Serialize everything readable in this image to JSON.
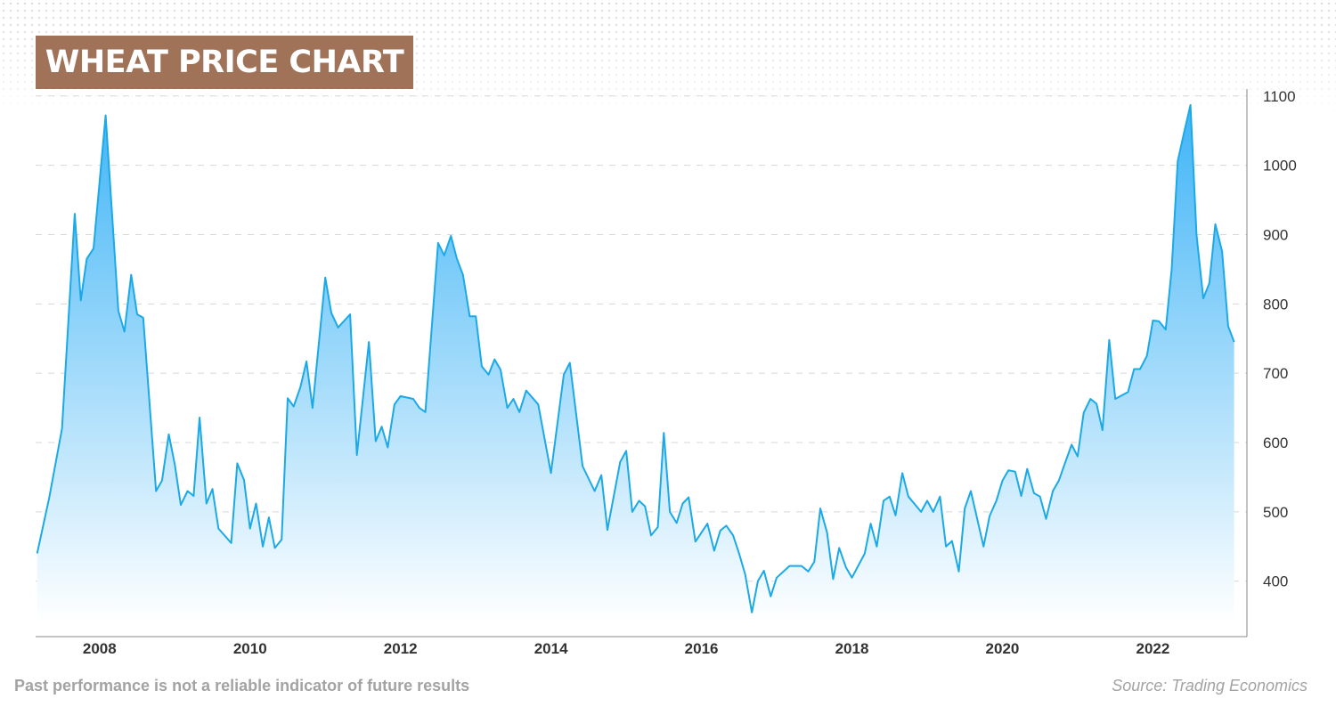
{
  "chart_data": {
    "type": "area",
    "title": "WHEAT PRICE CHART",
    "xlabel": "",
    "ylabel": "",
    "ylim": [
      320,
      1110
    ],
    "xlim": [
      2007.15,
      2023.25
    ],
    "y_ticks": [
      400,
      500,
      600,
      700,
      800,
      900,
      1000,
      1100
    ],
    "x_ticks": [
      2008,
      2010,
      2012,
      2014,
      2016,
      2018,
      2020,
      2022
    ],
    "grid": "horizontal-dashed",
    "colors": {
      "line": "#1ba9e8",
      "fill_top": "#45b8f7",
      "fill_bottom": "#ffffff",
      "grid": "#d7d7d7",
      "axis": "#8a8a8a"
    },
    "series": [
      {
        "name": "Wheat",
        "points": [
          [
            2007.17,
            440
          ],
          [
            2007.33,
            520
          ],
          [
            2007.5,
            620
          ],
          [
            2007.67,
            930
          ],
          [
            2007.75,
            805
          ],
          [
            2007.83,
            865
          ],
          [
            2007.92,
            880
          ],
          [
            2008.08,
            1072
          ],
          [
            2008.25,
            790
          ],
          [
            2008.33,
            760
          ],
          [
            2008.42,
            842
          ],
          [
            2008.5,
            785
          ],
          [
            2008.58,
            780
          ],
          [
            2008.75,
            530
          ],
          [
            2008.83,
            545
          ],
          [
            2008.92,
            612
          ],
          [
            2009.0,
            568
          ],
          [
            2009.08,
            510
          ],
          [
            2009.17,
            530
          ],
          [
            2009.25,
            523
          ],
          [
            2009.33,
            636
          ],
          [
            2009.42,
            512
          ],
          [
            2009.5,
            533
          ],
          [
            2009.58,
            476
          ],
          [
            2009.75,
            455
          ],
          [
            2009.83,
            570
          ],
          [
            2009.92,
            546
          ],
          [
            2010.0,
            476
          ],
          [
            2010.08,
            512
          ],
          [
            2010.17,
            450
          ],
          [
            2010.25,
            492
          ],
          [
            2010.33,
            448
          ],
          [
            2010.42,
            460
          ],
          [
            2010.5,
            664
          ],
          [
            2010.58,
            652
          ],
          [
            2010.67,
            680
          ],
          [
            2010.75,
            717
          ],
          [
            2010.83,
            650
          ],
          [
            2011.0,
            838
          ],
          [
            2011.08,
            787
          ],
          [
            2011.17,
            766
          ],
          [
            2011.33,
            785
          ],
          [
            2011.42,
            582
          ],
          [
            2011.58,
            745
          ],
          [
            2011.67,
            602
          ],
          [
            2011.75,
            623
          ],
          [
            2011.83,
            593
          ],
          [
            2011.92,
            655
          ],
          [
            2012.0,
            667
          ],
          [
            2012.17,
            663
          ],
          [
            2012.25,
            650
          ],
          [
            2012.33,
            644
          ],
          [
            2012.5,
            888
          ],
          [
            2012.58,
            870
          ],
          [
            2012.67,
            898
          ],
          [
            2012.75,
            865
          ],
          [
            2012.83,
            842
          ],
          [
            2012.92,
            782
          ],
          [
            2013.0,
            782
          ],
          [
            2013.08,
            710
          ],
          [
            2013.17,
            698
          ],
          [
            2013.25,
            720
          ],
          [
            2013.33,
            705
          ],
          [
            2013.42,
            650
          ],
          [
            2013.5,
            663
          ],
          [
            2013.58,
            644
          ],
          [
            2013.67,
            675
          ],
          [
            2013.83,
            655
          ],
          [
            2014.0,
            556
          ],
          [
            2014.17,
            698
          ],
          [
            2014.25,
            715
          ],
          [
            2014.42,
            566
          ],
          [
            2014.58,
            530
          ],
          [
            2014.67,
            553
          ],
          [
            2014.75,
            474
          ],
          [
            2014.92,
            572
          ],
          [
            2015.0,
            588
          ],
          [
            2015.08,
            500
          ],
          [
            2015.17,
            516
          ],
          [
            2015.25,
            508
          ],
          [
            2015.33,
            466
          ],
          [
            2015.42,
            478
          ],
          [
            2015.5,
            614
          ],
          [
            2015.58,
            500
          ],
          [
            2015.67,
            484
          ],
          [
            2015.75,
            512
          ],
          [
            2015.83,
            521
          ],
          [
            2015.92,
            457
          ],
          [
            2016.08,
            483
          ],
          [
            2016.17,
            444
          ],
          [
            2016.25,
            473
          ],
          [
            2016.33,
            480
          ],
          [
            2016.42,
            466
          ],
          [
            2016.5,
            440
          ],
          [
            2016.58,
            410
          ],
          [
            2016.67,
            355
          ],
          [
            2016.75,
            400
          ],
          [
            2016.83,
            415
          ],
          [
            2016.92,
            378
          ],
          [
            2017.0,
            405
          ],
          [
            2017.17,
            422
          ],
          [
            2017.33,
            422
          ],
          [
            2017.42,
            414
          ],
          [
            2017.5,
            428
          ],
          [
            2017.58,
            505
          ],
          [
            2017.67,
            470
          ],
          [
            2017.75,
            403
          ],
          [
            2017.83,
            448
          ],
          [
            2017.92,
            420
          ],
          [
            2018.0,
            405
          ],
          [
            2018.17,
            440
          ],
          [
            2018.25,
            483
          ],
          [
            2018.33,
            450
          ],
          [
            2018.42,
            516
          ],
          [
            2018.5,
            522
          ],
          [
            2018.58,
            495
          ],
          [
            2018.67,
            556
          ],
          [
            2018.75,
            522
          ],
          [
            2018.92,
            500
          ],
          [
            2019.0,
            516
          ],
          [
            2019.08,
            500
          ],
          [
            2019.17,
            522
          ],
          [
            2019.25,
            450
          ],
          [
            2019.33,
            458
          ],
          [
            2019.42,
            414
          ],
          [
            2019.5,
            505
          ],
          [
            2019.58,
            530
          ],
          [
            2019.75,
            450
          ],
          [
            2019.83,
            494
          ],
          [
            2019.92,
            516
          ],
          [
            2020.0,
            545
          ],
          [
            2020.08,
            560
          ],
          [
            2020.17,
            558
          ],
          [
            2020.25,
            523
          ],
          [
            2020.33,
            562
          ],
          [
            2020.42,
            527
          ],
          [
            2020.5,
            522
          ],
          [
            2020.58,
            490
          ],
          [
            2020.67,
            530
          ],
          [
            2020.75,
            545
          ],
          [
            2020.83,
            570
          ],
          [
            2020.92,
            597
          ],
          [
            2021.0,
            580
          ],
          [
            2021.08,
            643
          ],
          [
            2021.17,
            663
          ],
          [
            2021.25,
            656
          ],
          [
            2021.33,
            618
          ],
          [
            2021.42,
            748
          ],
          [
            2021.5,
            663
          ],
          [
            2021.67,
            673
          ],
          [
            2021.75,
            706
          ],
          [
            2021.83,
            706
          ],
          [
            2021.92,
            725
          ],
          [
            2022.0,
            776
          ],
          [
            2022.08,
            775
          ],
          [
            2022.17,
            763
          ],
          [
            2022.25,
            850
          ],
          [
            2022.33,
            1006
          ],
          [
            2022.42,
            1050
          ],
          [
            2022.5,
            1087
          ],
          [
            2022.58,
            900
          ],
          [
            2022.67,
            808
          ],
          [
            2022.75,
            830
          ],
          [
            2022.83,
            915
          ],
          [
            2022.92,
            876
          ],
          [
            2023.0,
            768
          ],
          [
            2023.08,
            745
          ]
        ]
      }
    ]
  },
  "footer": {
    "disclaimer": "Past performance is not a reliable indicator of future results",
    "source": "Source: Trading Economics"
  }
}
